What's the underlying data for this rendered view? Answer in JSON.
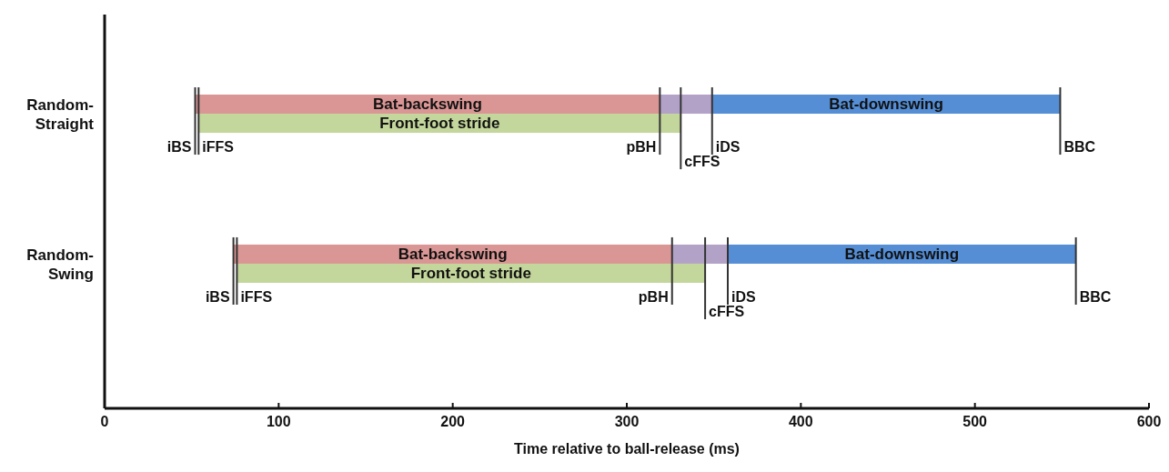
{
  "chart_data": {
    "type": "bar",
    "orientation": "horizontal",
    "xlabel": "Time relative to ball-release (ms)",
    "categories": [
      "Random-Straight",
      "Random-Swing"
    ],
    "xlim": [
      0,
      600
    ],
    "xticks": [
      0,
      100,
      200,
      300,
      400,
      500,
      600
    ],
    "legend": false,
    "grid": false,
    "series": [
      {
        "name": "Bat-backswing",
        "color": "#d99694",
        "base": [
          52,
          74
        ],
        "values": [
          267,
          252
        ]
      },
      {
        "color": "#b3a2c7",
        "base": [
          319,
          326
        ],
        "values": [
          30,
          32
        ]
      },
      {
        "name": "Bat-downswing",
        "color": "#558ed5",
        "base": [
          349,
          358
        ],
        "values": [
          200,
          200
        ]
      },
      {
        "name": "Front-foot stride",
        "color": "#c3d69b",
        "base": [
          54,
          76
        ],
        "values": [
          277,
          269
        ]
      }
    ],
    "annotations": [
      {
        "text": "iBS",
        "x": 52,
        "y": "Random-Straight"
      },
      {
        "text": "iFFS",
        "x": 54,
        "y": "Random-Straight"
      },
      {
        "text": "pBH",
        "x": 319,
        "y": "Random-Straight"
      },
      {
        "text": "cFFS",
        "x": 331,
        "y": "Random-Straight"
      },
      {
        "text": "iDS",
        "x": 349,
        "y": "Random-Straight"
      },
      {
        "text": "BBC",
        "x": 549,
        "y": "Random-Straight"
      },
      {
        "text": "iBS",
        "x": 74,
        "y": "Random-Swing"
      },
      {
        "text": "iFFS",
        "x": 76,
        "y": "Random-Swing"
      },
      {
        "text": "pBH",
        "x": 326,
        "y": "Random-Swing"
      },
      {
        "text": "cFFS",
        "x": 345,
        "y": "Random-Swing"
      },
      {
        "text": "iDS",
        "x": 358,
        "y": "Random-Swing"
      },
      {
        "text": "BBC",
        "x": 558,
        "y": "Random-Swing"
      }
    ]
  }
}
